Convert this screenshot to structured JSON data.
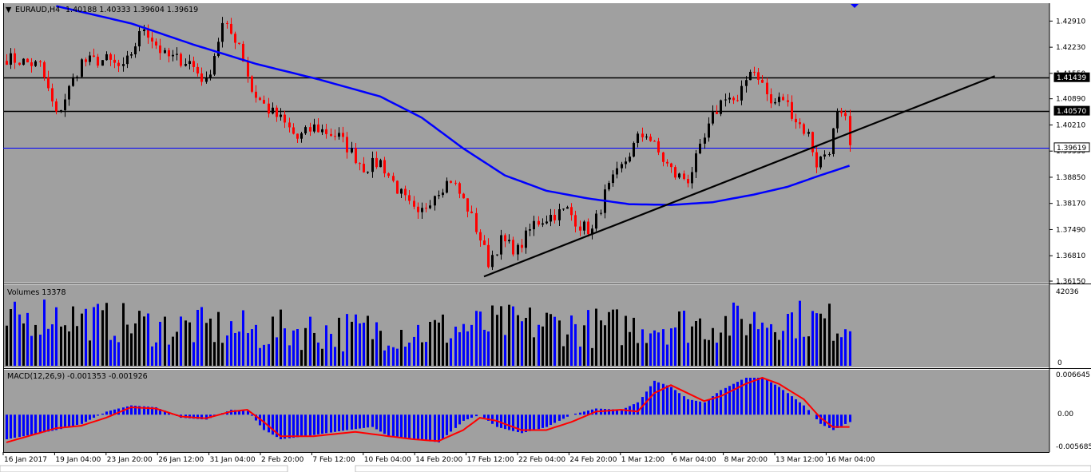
{
  "window": {
    "symbol_info": "EURAUD,H4",
    "ohlc": "1.40188 1.40333 1.39604 1.39619"
  },
  "colors": {
    "background": "#a0a0a0",
    "bull_candle": "#000000",
    "bear_candle": "#ff0000",
    "moving_average": "#0000ff",
    "line": "#000000",
    "volume_up": "#000000",
    "volume_down": "#0000ff",
    "macd_hist": "#0000ff",
    "macd_signal": "#ff0000"
  },
  "indicators": {
    "volumes_label": "Volumes 13378",
    "volumes_max": "42036",
    "volumes_min": "0",
    "macd_label": "MACD(12,26,9) -0.001353 -0.001926",
    "macd_ticks": [
      "0.006645",
      "0.00",
      "-0.005685"
    ]
  },
  "chart_data": {
    "type": "candlestick",
    "title": "EURAUD,H4",
    "ylim": [
      1.3615,
      1.4325
    ],
    "y_ticks": [
      "1.42910",
      "1.42230",
      "1.41550",
      "1.40890",
      "1.40210",
      "1.39530",
      "1.38850",
      "1.38170",
      "1.37490",
      "1.36810",
      "1.36150"
    ],
    "x_ticks": [
      "16 Jan 2017",
      "19 Jan 04:00",
      "23 Jan 20:00",
      "26 Jan 12:00",
      "31 Jan 04:00",
      "2 Feb 20:00",
      "7 Feb 12:00",
      "10 Feb 04:00",
      "14 Feb 20:00",
      "17 Feb 12:00",
      "22 Feb 04:00",
      "24 Feb 20:00",
      "1 Mar 12:00",
      "6 Mar 04:00",
      "8 Mar 20:00",
      "13 Mar 12:00",
      "16 Mar 04:00"
    ],
    "horizontal_lines": [
      {
        "value": 1.41439,
        "label": "1.41439",
        "color": "#000000"
      },
      {
        "value": 1.4057,
        "label": "1.40570",
        "color": "#000000"
      },
      {
        "value": 1.39619,
        "label": "1.39619",
        "color": "#0000ff"
      }
    ],
    "trendline": {
      "from": {
        "index": 115,
        "price": 1.3627
      },
      "to": {
        "index": 238,
        "price": 1.4148
      }
    },
    "price_anchors": [
      [
        0,
        1.4195
      ],
      [
        8,
        1.4175
      ],
      [
        12,
        1.4045
      ],
      [
        18,
        1.4185
      ],
      [
        24,
        1.419
      ],
      [
        28,
        1.4165
      ],
      [
        33,
        1.4275
      ],
      [
        38,
        1.42
      ],
      [
        44,
        1.4185
      ],
      [
        48,
        1.413
      ],
      [
        52,
        1.428
      ],
      [
        56,
        1.4235
      ],
      [
        59,
        1.411
      ],
      [
        63,
        1.406
      ],
      [
        66,
        1.4035
      ],
      [
        70,
        1.3985
      ],
      [
        74,
        1.4015
      ],
      [
        80,
        1.399
      ],
      [
        86,
        1.391
      ],
      [
        90,
        1.3925
      ],
      [
        94,
        1.3855
      ],
      [
        99,
        1.378
      ],
      [
        103,
        1.3845
      ],
      [
        107,
        1.388
      ],
      [
        111,
        1.3805
      ],
      [
        114,
        1.3725
      ],
      [
        116,
        1.3665
      ],
      [
        119,
        1.372
      ],
      [
        123,
        1.3695
      ],
      [
        127,
        1.3765
      ],
      [
        131,
        1.3785
      ],
      [
        135,
        1.38
      ],
      [
        138,
        1.376
      ],
      [
        141,
        1.3745
      ],
      [
        144,
        1.384
      ],
      [
        148,
        1.391
      ],
      [
        152,
        1.3985
      ],
      [
        154,
        1.4
      ],
      [
        158,
        1.393
      ],
      [
        161,
        1.389
      ],
      [
        164,
        1.388
      ],
      [
        167,
        1.3955
      ],
      [
        170,
        1.404
      ],
      [
        173,
        1.41
      ],
      [
        176,
        1.4075
      ],
      [
        179,
        1.417
      ],
      [
        181,
        1.415
      ],
      [
        184,
        1.4075
      ],
      [
        187,
        1.409
      ],
      [
        190,
        1.4035
      ],
      [
        193,
        1.3995
      ],
      [
        195,
        1.392
      ],
      [
        198,
        1.396
      ],
      [
        200,
        1.4045
      ],
      [
        202,
        1.403
      ],
      [
        203,
        1.3962
      ]
    ],
    "moving_average_anchors": [
      [
        12,
        1.433
      ],
      [
        30,
        1.4285
      ],
      [
        45,
        1.423
      ],
      [
        60,
        1.418
      ],
      [
        75,
        1.414
      ],
      [
        90,
        1.4095
      ],
      [
        100,
        1.404
      ],
      [
        110,
        1.396
      ],
      [
        120,
        1.389
      ],
      [
        130,
        1.385
      ],
      [
        140,
        1.383
      ],
      [
        150,
        1.3815
      ],
      [
        160,
        1.3813
      ],
      [
        170,
        1.382
      ],
      [
        180,
        1.384
      ],
      [
        188,
        1.386
      ],
      [
        196,
        1.389
      ],
      [
        203,
        1.3915
      ]
    ],
    "macd_hist_anchors": [
      [
        0,
        -0.004
      ],
      [
        12,
        -0.0025
      ],
      [
        18,
        -0.0015
      ],
      [
        24,
        0.0005
      ],
      [
        30,
        0.0015
      ],
      [
        36,
        0.0012
      ],
      [
        42,
        -0.0005
      ],
      [
        48,
        -0.0008
      ],
      [
        54,
        0.0008
      ],
      [
        58,
        0.0006
      ],
      [
        62,
        -0.0025
      ],
      [
        66,
        -0.004
      ],
      [
        72,
        -0.0035
      ],
      [
        82,
        -0.0025
      ],
      [
        88,
        -0.002
      ],
      [
        92,
        -0.0035
      ],
      [
        98,
        -0.004
      ],
      [
        104,
        -0.0045
      ],
      [
        110,
        -0.001
      ],
      [
        114,
        0.0
      ],
      [
        118,
        -0.002
      ],
      [
        124,
        -0.003
      ],
      [
        130,
        -0.002
      ],
      [
        136,
        0.0
      ],
      [
        142,
        0.001
      ],
      [
        148,
        0.0008
      ],
      [
        152,
        0.002
      ],
      [
        156,
        0.0055
      ],
      [
        160,
        0.0045
      ],
      [
        164,
        0.0025
      ],
      [
        168,
        0.002
      ],
      [
        172,
        0.004
      ],
      [
        178,
        0.006
      ],
      [
        182,
        0.006
      ],
      [
        186,
        0.0045
      ],
      [
        192,
        0.0015
      ],
      [
        196,
        -0.0015
      ],
      [
        199,
        -0.0025
      ],
      [
        203,
        -0.0012
      ]
    ],
    "macd_signal_anchors": [
      [
        0,
        -0.0045
      ],
      [
        12,
        -0.0022
      ],
      [
        18,
        -0.0018
      ],
      [
        24,
        -0.0005
      ],
      [
        30,
        0.0012
      ],
      [
        36,
        0.001
      ],
      [
        42,
        -0.0003
      ],
      [
        48,
        -0.0006
      ],
      [
        54,
        0.0005
      ],
      [
        58,
        0.0008
      ],
      [
        62,
        -0.0012
      ],
      [
        66,
        -0.0035
      ],
      [
        74,
        -0.0035
      ],
      [
        84,
        -0.0028
      ],
      [
        92,
        -0.0035
      ],
      [
        98,
        -0.004
      ],
      [
        104,
        -0.0043
      ],
      [
        110,
        -0.0025
      ],
      [
        114,
        -0.0005
      ],
      [
        118,
        -0.001
      ],
      [
        124,
        -0.0025
      ],
      [
        130,
        -0.0025
      ],
      [
        136,
        -0.0012
      ],
      [
        142,
        0.0005
      ],
      [
        148,
        0.0008
      ],
      [
        152,
        0.0005
      ],
      [
        156,
        0.0035
      ],
      [
        160,
        0.0048
      ],
      [
        164,
        0.0035
      ],
      [
        168,
        0.0022
      ],
      [
        172,
        0.003
      ],
      [
        178,
        0.005
      ],
      [
        182,
        0.006
      ],
      [
        186,
        0.005
      ],
      [
        192,
        0.0025
      ],
      [
        196,
        -0.0005
      ],
      [
        199,
        -0.002
      ],
      [
        203,
        -0.002
      ]
    ],
    "volume_anchors": [
      [
        0,
        0.55
      ],
      [
        10,
        0.7
      ],
      [
        20,
        0.6
      ],
      [
        30,
        0.55
      ],
      [
        40,
        0.5
      ],
      [
        50,
        0.5
      ],
      [
        60,
        0.45
      ],
      [
        70,
        0.48
      ],
      [
        80,
        0.45
      ],
      [
        90,
        0.48
      ],
      [
        100,
        0.45
      ],
      [
        110,
        0.5
      ],
      [
        120,
        0.55
      ],
      [
        130,
        0.55
      ],
      [
        140,
        0.5
      ],
      [
        150,
        0.52
      ],
      [
        160,
        0.55
      ],
      [
        170,
        0.55
      ],
      [
        180,
        0.6
      ],
      [
        190,
        0.62
      ],
      [
        203,
        0.55
      ]
    ]
  }
}
